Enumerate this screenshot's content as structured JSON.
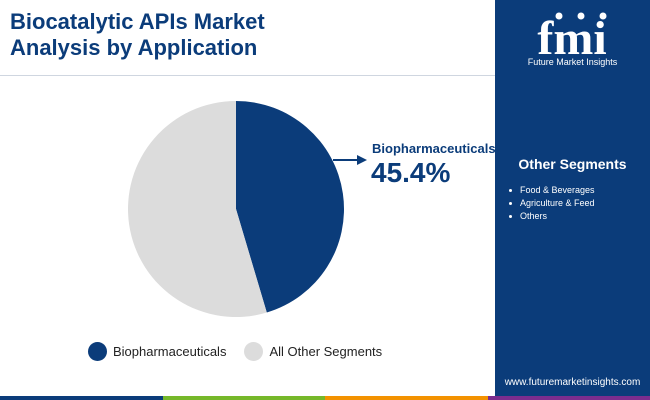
{
  "title": "Biocatalytic APIs Market\nAnalysis by Application",
  "chart_data": {
    "type": "pie",
    "title": "Biocatalytic APIs Market Analysis by Application",
    "series": [
      {
        "name": "Biopharmaceuticals",
        "value": 45.4,
        "color": "#0b3c7a"
      },
      {
        "name": "All Other Segments",
        "value": 54.6,
        "color": "#dcdcdc"
      }
    ],
    "callout": {
      "label": "Biopharmaceuticals",
      "value_text": "45.4%"
    },
    "legend_position": "bottom"
  },
  "sidebar": {
    "logo_text": "fmi",
    "tagline": "Future Market Insights",
    "other_segments_title": "Other Segments",
    "other_segments": [
      "Food & Beverages",
      "Agriculture & Feed",
      "Others"
    ],
    "website": "www.futuremarketinsights.com"
  },
  "colors": {
    "brand": "#0b3c7a",
    "other": "#dcdcdc"
  },
  "bottom_bar_colors": [
    "#0b3c7a",
    "#76b82a",
    "#f39200",
    "#7b2d8e"
  ]
}
